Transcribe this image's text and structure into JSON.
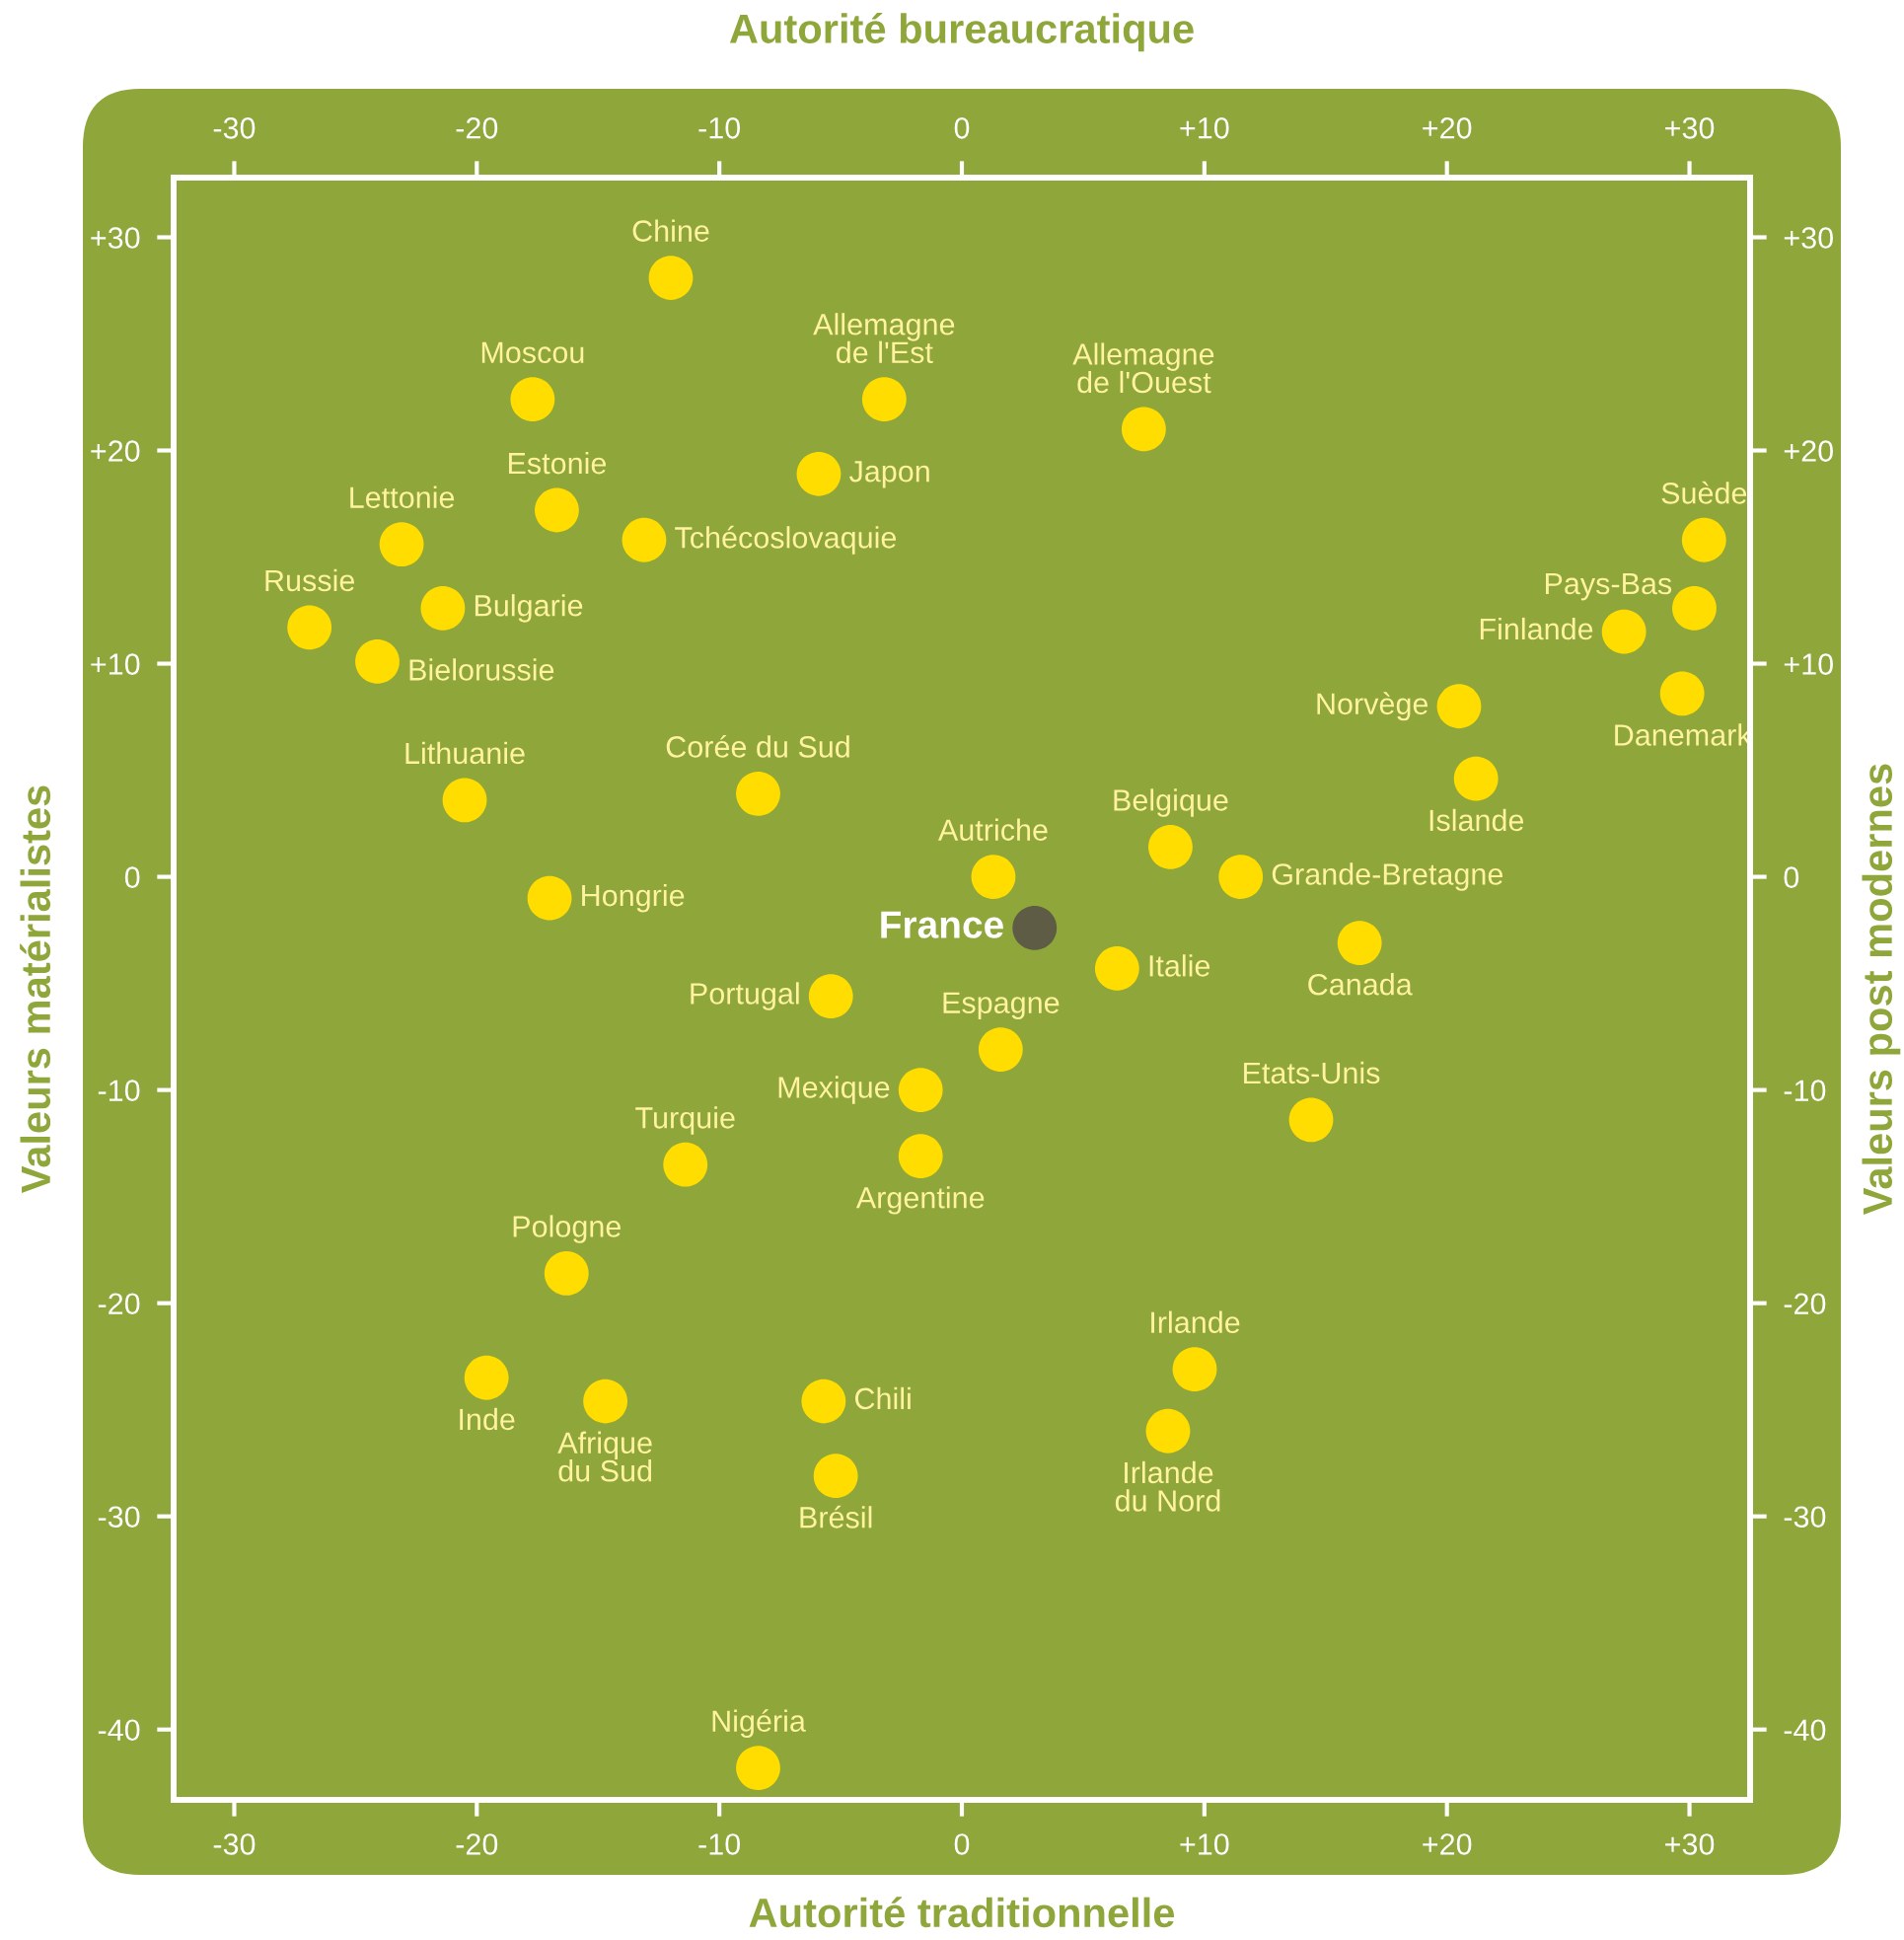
{
  "chart_data": {
    "type": "scatter",
    "xlabel": "Autorité traditionnelle",
    "x2label": "Autorité bureaucratique",
    "ylabel": "Valeurs matérialistes",
    "y2label": "Valeurs post modernes",
    "xlim": [
      -32.5,
      32.5
    ],
    "x2lim": [
      -32.5,
      32.5
    ],
    "ylim": [
      -43.3,
      32.8
    ],
    "y2lim": [
      -43.3,
      32.8
    ],
    "xticks": [
      -30,
      -20,
      -10,
      0,
      {
        "value": 10,
        "label": "+10"
      },
      {
        "value": 20,
        "label": "+20"
      },
      {
        "value": 30,
        "label": "+30"
      }
    ],
    "x2ticks": [
      -30,
      -20,
      -10,
      0,
      {
        "value": 10,
        "label": "+10"
      },
      {
        "value": 20,
        "label": "+20"
      },
      {
        "value": 30,
        "label": "+30"
      }
    ],
    "yticks": [
      -40,
      -30,
      -20,
      -10,
      0,
      {
        "value": 10,
        "label": "+10"
      },
      {
        "value": 20,
        "label": "+20"
      },
      {
        "value": 30,
        "label": "+30"
      }
    ],
    "y2ticks": [
      -40,
      -30,
      -20,
      -10,
      0,
      {
        "value": 10,
        "label": "+10"
      },
      {
        "value": 20,
        "label": "+20"
      },
      {
        "value": 30,
        "label": "+30"
      }
    ],
    "grid": false,
    "legend": false,
    "marker": "circle",
    "series": [
      {
        "x": [
          -12.0,
          -17.7,
          -3.2,
          7.5,
          -5.9,
          -16.7,
          -13.1,
          -23.1,
          -21.4,
          -26.9,
          -24.1,
          -20.5,
          -8.4,
          -17.0,
          1.3,
          3.0,
          8.6,
          11.5,
          6.4,
          -5.4,
          1.6,
          -1.7,
          -1.7,
          -11.4,
          -16.3,
          -19.6,
          -14.7,
          -5.7,
          -5.2,
          9.6,
          8.5,
          -8.4,
          16.4,
          14.4,
          20.5,
          21.2,
          30.6,
          30.2,
          27.3,
          29.7
        ],
        "values": [
          28.1,
          22.4,
          22.4,
          21.0,
          18.9,
          17.2,
          15.8,
          15.6,
          12.6,
          11.7,
          10.1,
          3.6,
          3.9,
          -1.0,
          0,
          -2.4,
          1.4,
          0,
          -4.3,
          -5.6,
          -8.1,
          -10.0,
          -13.1,
          -13.5,
          -18.6,
          -23.5,
          -24.6,
          -24.6,
          -28.1,
          -23.1,
          -26.0,
          -41.8,
          -3.1,
          -11.4,
          8.0,
          4.6,
          15.8,
          12.6,
          11.5,
          8.6
        ],
        "colors": [
          "#ffdd00",
          "#ffdd00",
          "#ffdd00",
          "#ffdd00",
          "#ffdd00",
          "#ffdd00",
          "#ffdd00",
          "#ffdd00",
          "#ffdd00",
          "#ffdd00",
          "#ffdd00",
          "#ffdd00",
          "#ffdd00",
          "#ffdd00",
          "#ffdd00",
          "#5f5c45",
          "#ffdd00",
          "#ffdd00",
          "#ffdd00",
          "#ffdd00",
          "#ffdd00",
          "#ffdd00",
          "#ffdd00",
          "#ffdd00",
          "#ffdd00",
          "#ffdd00",
          "#ffdd00",
          "#ffdd00",
          "#ffdd00",
          "#ffdd00",
          "#ffdd00",
          "#ffdd00",
          "#ffdd00",
          "#ffdd00",
          "#ffdd00",
          "#ffdd00",
          "#ffdd00",
          "#ffdd00",
          "#ffdd00",
          "#ffdd00"
        ]
      }
    ],
    "annotations": [
      {
        "text": "Chine",
        "x": -12.0,
        "y": 28.1
      },
      {
        "text": "Moscou",
        "x": -17.7,
        "y": 22.4
      },
      {
        "text": "Allemagne\nde l'Est",
        "x": -3.2,
        "y": 22.4
      },
      {
        "text": "Allemagne\nde l'Ouest",
        "x": 7.5,
        "y": 21.0
      },
      {
        "text": "Japon",
        "x": -5.9,
        "y": 18.9
      },
      {
        "text": "Estonie",
        "x": -16.7,
        "y": 17.2
      },
      {
        "text": "Tchécoslovaquie",
        "x": -13.1,
        "y": 15.8
      },
      {
        "text": "Lettonie",
        "x": -23.1,
        "y": 15.6
      },
      {
        "text": "Bulgarie",
        "x": -21.4,
        "y": 12.6
      },
      {
        "text": "Russie",
        "x": -26.9,
        "y": 11.7
      },
      {
        "text": "Bielorussie",
        "x": -24.1,
        "y": 10.1
      },
      {
        "text": "Lithuanie",
        "x": -20.5,
        "y": 3.6
      },
      {
        "text": "Corée du Sud",
        "x": -8.4,
        "y": 3.9
      },
      {
        "text": "Hongrie",
        "x": -17.0,
        "y": -1.0
      },
      {
        "text": "Autriche",
        "x": 1.3,
        "y": 0
      },
      {
        "text": "France",
        "x": 3.0,
        "y": -2.4
      },
      {
        "text": "Belgique",
        "x": 8.6,
        "y": 1.4
      },
      {
        "text": "Grande-Bretagne",
        "x": 11.5,
        "y": 0
      },
      {
        "text": "Italie",
        "x": 6.4,
        "y": -4.3
      },
      {
        "text": "Portugal",
        "x": -5.4,
        "y": -5.6
      },
      {
        "text": "Espagne",
        "x": 1.6,
        "y": -8.1
      },
      {
        "text": "Mexique",
        "x": -1.7,
        "y": -10.0
      },
      {
        "text": "Argentine",
        "x": -1.7,
        "y": -13.1
      },
      {
        "text": "Turquie",
        "x": -11.4,
        "y": -13.5
      },
      {
        "text": "Pologne",
        "x": -16.3,
        "y": -18.6
      },
      {
        "text": "Inde",
        "x": -19.6,
        "y": -23.5
      },
      {
        "text": "Afrique\ndu Sud",
        "x": -14.7,
        "y": -24.6
      },
      {
        "text": "Chili",
        "x": -5.7,
        "y": -24.6
      },
      {
        "text": "Brésil",
        "x": -5.2,
        "y": -28.1
      },
      {
        "text": "Irlande",
        "x": 9.6,
        "y": -23.1
      },
      {
        "text": "Irlande\ndu Nord",
        "x": 8.5,
        "y": -26.0
      },
      {
        "text": "Nigéria",
        "x": -8.4,
        "y": -41.8
      },
      {
        "text": "Canada",
        "x": 16.4,
        "y": -3.1
      },
      {
        "text": "Etats-Unis",
        "x": 14.4,
        "y": -11.4
      },
      {
        "text": "Norvège",
        "x": 20.5,
        "y": 8.0
      },
      {
        "text": "Islande",
        "x": 21.2,
        "y": 4.6
      },
      {
        "text": "Suède",
        "x": 30.6,
        "y": 15.8
      },
      {
        "text": "Pays-Bas",
        "x": 30.2,
        "y": 12.6
      },
      {
        "text": "Finlande",
        "x": 27.3,
        "y": 11.5
      },
      {
        "text": "Danemark",
        "x": 29.7,
        "y": 8.6
      }
    ]
  }
}
